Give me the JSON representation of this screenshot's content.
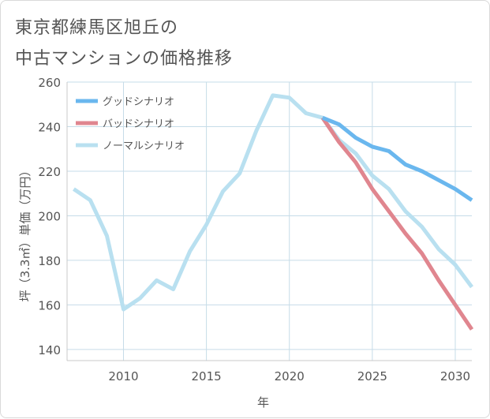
{
  "title_lines": [
    "東京都練馬区旭丘の",
    "中古マンションの価格推移"
  ],
  "chart_data": {
    "type": "line",
    "xlabel": "年",
    "ylabel": "坪（3.3㎡）単価（万円）",
    "xlim": [
      2006.6,
      2031
    ],
    "ylim": [
      135,
      260
    ],
    "xticks": [
      2010,
      2015,
      2020,
      2025,
      2030
    ],
    "yticks": [
      140,
      160,
      180,
      200,
      220,
      240,
      260
    ],
    "grid": true,
    "legend_position": "top-left",
    "series": [
      {
        "name": "グッドシナリオ",
        "color": "#6ab7ee",
        "x": [
          2022,
          2023,
          2024,
          2025,
          2026,
          2027,
          2028,
          2029,
          2030,
          2031
        ],
        "values": [
          244,
          241,
          235,
          231,
          229,
          223,
          220,
          216,
          212,
          207
        ]
      },
      {
        "name": "バッドシナリオ",
        "color": "#e0868f",
        "x": [
          2022,
          2023,
          2024,
          2025,
          2026,
          2027,
          2028,
          2029,
          2030,
          2031
        ],
        "values": [
          244,
          233,
          224,
          212,
          202,
          192,
          183,
          171,
          160,
          149
        ]
      },
      {
        "name": "ノーマルシナリオ",
        "color": "#b9e0f0",
        "x": [
          2007,
          2008,
          2009,
          2010,
          2011,
          2012,
          2013,
          2014,
          2015,
          2016,
          2017,
          2018,
          2019,
          2020,
          2021,
          2022,
          2023,
          2024,
          2025,
          2026,
          2027,
          2028,
          2029,
          2030,
          2031
        ],
        "values": [
          212,
          207,
          191,
          158,
          163,
          171,
          167,
          184,
          196,
          211,
          219,
          238,
          254,
          253,
          246,
          244,
          234,
          228,
          218,
          212,
          202,
          195,
          185,
          178,
          168
        ]
      }
    ]
  }
}
